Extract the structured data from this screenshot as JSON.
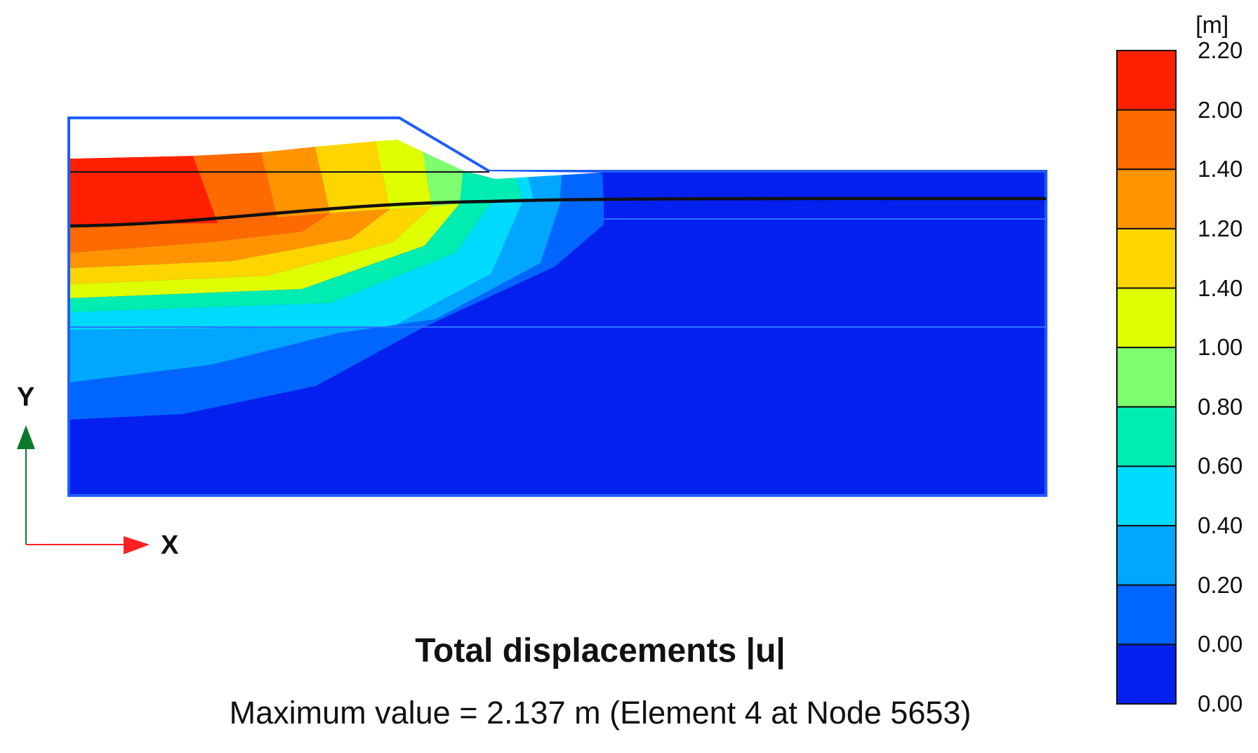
{
  "title": "Total displacements |u|",
  "subtitle": "Maximum value = 2.137 m (Element 4 at Node 5653)",
  "legend": {
    "unit": "[m]",
    "labels": [
      "2.20",
      "2.00",
      "1.40",
      "1.20",
      "1.40",
      "1.00",
      "0.80",
      "0.60",
      "0.40",
      "0.20",
      "0.00",
      "0.00"
    ],
    "colors": [
      "#ff2000",
      "#ff6a00",
      "#ff9400",
      "#ffd500",
      "#dfff00",
      "#7dff6f",
      "#00ecb1",
      "#00dbff",
      "#00a6ff",
      "#0066ff",
      "#0420ee"
    ]
  },
  "axes": {
    "x_label": "X",
    "y_label": "Y",
    "x_color": "#ff2020",
    "y_color": "#0a7a2a"
  },
  "model": {
    "boundary_color": "#1f5dff",
    "background_color": "#0420ee"
  }
}
